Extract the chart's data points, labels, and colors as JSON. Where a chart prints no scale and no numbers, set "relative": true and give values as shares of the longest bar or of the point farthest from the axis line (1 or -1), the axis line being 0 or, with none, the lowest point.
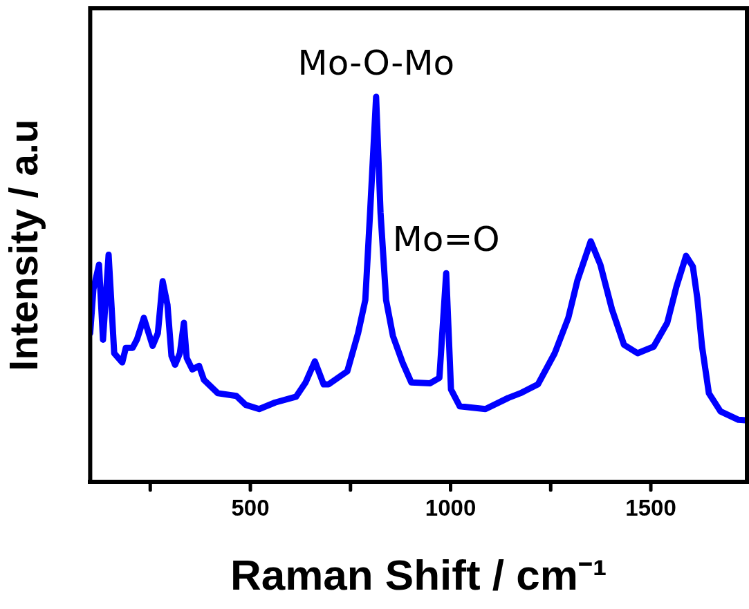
{
  "chart_data": {
    "type": "line",
    "xlabel": "Raman Shift / cm⁻¹",
    "ylabel": "Intensity / a.u",
    "relative": true,
    "tick_labels": "x",
    "marker": "none",
    "line_style": "solid",
    "xlim": [
      100,
      1740
    ],
    "xticks": [
      {
        "value": 250,
        "label": null
      },
      500,
      {
        "value": 750,
        "label": null
      },
      1000,
      {
        "value": 1250,
        "label": null
      },
      1500
    ],
    "x": [
      100,
      108,
      122,
      132,
      146,
      160,
      180,
      189,
      206,
      217,
      234,
      246,
      256,
      269,
      281,
      293,
      303,
      312,
      324,
      334,
      341,
      355,
      372,
      384,
      419,
      465,
      488,
      522,
      562,
      614,
      638,
      661,
      683,
      695,
      742,
      769,
      787,
      799,
      814,
      825,
      839,
      856,
      880,
      902,
      949,
      972,
      989,
      1001,
      1023,
      1087,
      1144,
      1174,
      1218,
      1260,
      1294,
      1317,
      1350,
      1374,
      1403,
      1433,
      1467,
      1507,
      1541,
      1564,
      1588,
      1605,
      1616,
      1628,
      1645,
      1674,
      1719,
      1737
    ],
    "series": [
      {
        "color": "#0000ff",
        "values": [
          0.386,
          0.5,
          0.564,
          0.369,
          0.59,
          0.334,
          0.31,
          0.348,
          0.348,
          0.37,
          0.426,
          0.386,
          0.353,
          0.386,
          0.521,
          0.46,
          0.327,
          0.304,
          0.334,
          0.413,
          0.322,
          0.292,
          0.301,
          0.265,
          0.23,
          0.223,
          0.2,
          0.189,
          0.206,
          0.221,
          0.258,
          0.313,
          0.253,
          0.253,
          0.287,
          0.386,
          0.472,
          0.7,
          1.0,
          0.7,
          0.472,
          0.379,
          0.31,
          0.258,
          0.256,
          0.27,
          0.542,
          0.24,
          0.196,
          0.189,
          0.218,
          0.23,
          0.253,
          0.334,
          0.426,
          0.524,
          0.625,
          0.564,
          0.448,
          0.356,
          0.334,
          0.351,
          0.413,
          0.507,
          0.587,
          0.559,
          0.478,
          0.351,
          0.23,
          0.183,
          0.161,
          0.16
        ]
      }
    ],
    "annotations": [
      {
        "text": "Mo-O-Mo",
        "x": 814,
        "y": 1.0
      },
      {
        "text": "Mo=O",
        "x": 989,
        "y": 0.542
      }
    ]
  }
}
